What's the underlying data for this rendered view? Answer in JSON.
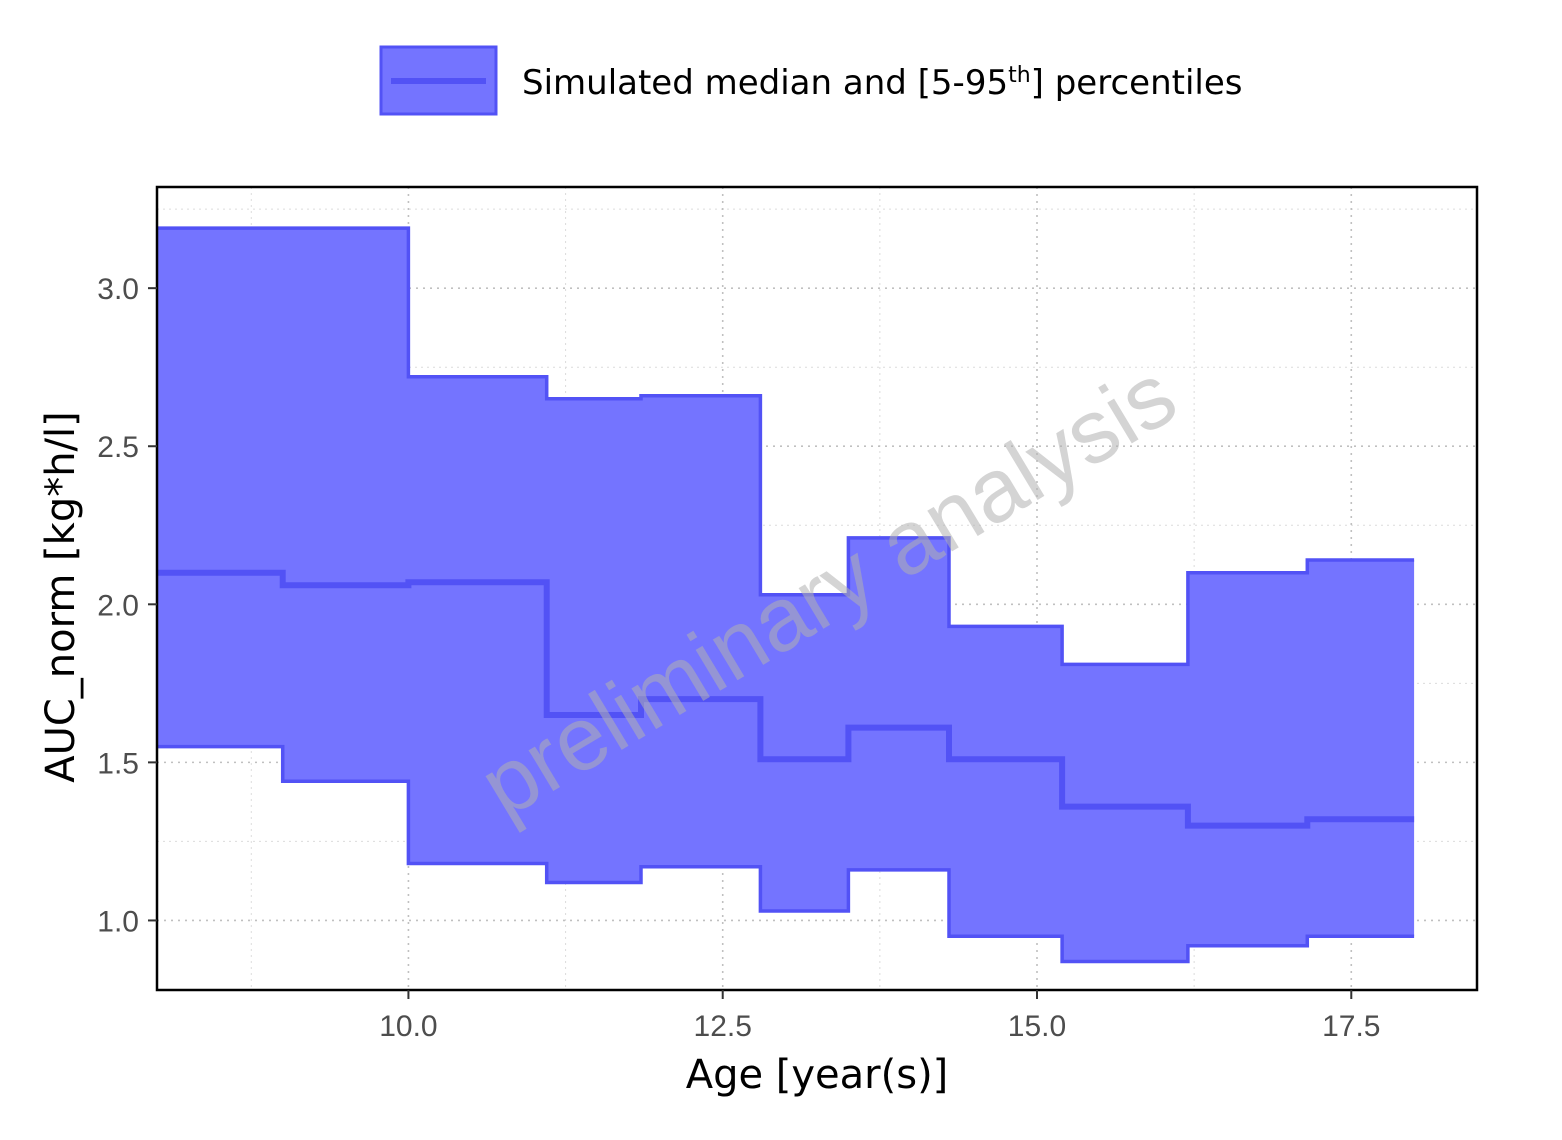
{
  "chart_data": {
    "type": "area",
    "title": "",
    "xlabel": "Age [year(s)]",
    "ylabel": "AUC_norm [kg*h/l]",
    "xlim": [
      8.0,
      18.5
    ],
    "ylim": [
      0.78,
      3.32
    ],
    "x_ticks": [
      10.0,
      12.5,
      15.0,
      17.5
    ],
    "x_tick_labels": [
      "10.0",
      "12.5",
      "15.0",
      "17.5"
    ],
    "y_ticks": [
      1.0,
      1.5,
      2.0,
      2.5,
      3.0
    ],
    "y_tick_labels": [
      "1.0",
      "1.5",
      "2.0",
      "2.5",
      "3.0"
    ],
    "grid": true,
    "legend": {
      "placement": "top",
      "label_main": "Simulated median and [5-95",
      "label_sup": "th",
      "label_end": "] percentiles"
    },
    "watermark": "preliminary analysis",
    "colors": {
      "fill": "#7474ff",
      "line": "#5252f5"
    },
    "x": [
      8.0,
      9.0,
      10.0,
      11.1,
      11.85,
      12.8,
      13.5,
      14.3,
      15.2,
      16.2,
      17.15,
      18.0
    ],
    "series": [
      {
        "name": "median",
        "values": [
          2.1,
          2.06,
          2.07,
          1.65,
          1.7,
          1.51,
          1.61,
          1.51,
          1.36,
          1.3,
          1.32,
          1.32
        ]
      },
      {
        "name": "p95",
        "values": [
          3.19,
          3.19,
          2.72,
          2.65,
          2.66,
          2.03,
          2.21,
          1.93,
          1.81,
          2.1,
          2.14,
          2.14
        ]
      },
      {
        "name": "p5",
        "values": [
          1.55,
          1.44,
          1.18,
          1.12,
          1.17,
          1.03,
          1.16,
          0.95,
          0.87,
          0.92,
          0.95,
          0.95
        ]
      }
    ]
  }
}
